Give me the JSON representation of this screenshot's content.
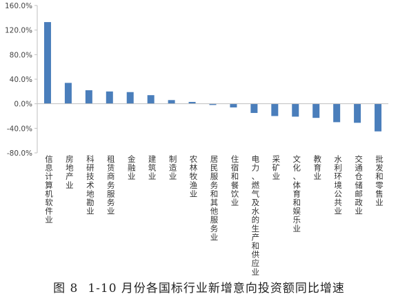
{
  "caption": {
    "figure_number": "图 8",
    "title": "1-10 月份各国标行业新增意向投资额同比增速"
  },
  "chart_data": {
    "type": "bar",
    "title": "",
    "xlabel": "",
    "ylabel": "",
    "ylim": [
      -80,
      160
    ],
    "yticks": [
      -80,
      -40,
      0,
      40,
      80,
      120,
      160
    ],
    "ytick_labels": [
      "-80.0%",
      "-40.0%",
      "0.0%",
      "40.0%",
      "80.0%",
      "120.0%",
      "160.0%"
    ],
    "grid": false,
    "legend": "none",
    "bar_color": "#4a7ebb",
    "categories": [
      "信息计算机软件业",
      "房地产业",
      "科研技术地勘业",
      "租赁商务服务业",
      "金融业",
      "建筑业",
      "制造业",
      "农林牧渔业",
      "居民服务和其他服务业",
      "住宿和餐饮业",
      "电力、燃气及水的生产和供应业",
      "采矿业",
      "文化、体育和娱乐业",
      "教育业",
      "水利环境公共业",
      "交通仓储邮政业",
      "批发和零售业"
    ],
    "values": [
      133,
      34,
      22,
      20,
      19,
      14,
      6,
      3,
      -2,
      -6,
      -15,
      -20,
      -21,
      -23,
      -30,
      -31,
      -45
    ]
  }
}
